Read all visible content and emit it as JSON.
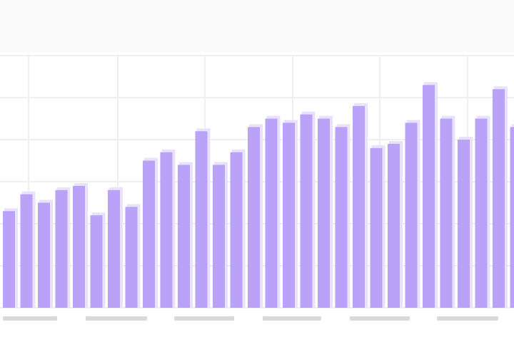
{
  "chart_data": {
    "type": "bar",
    "color": "#b9a2f7",
    "grid": true,
    "values": [
      2.3,
      2.7,
      2.5,
      2.8,
      2.9,
      2.2,
      2.8,
      2.4,
      3.5,
      3.7,
      3.4,
      4.2,
      3.4,
      3.7,
      4.3,
      4.5,
      4.4,
      4.6,
      4.5,
      4.3,
      4.8,
      3.8,
      3.9,
      4.4,
      5.3,
      4.5,
      4.0,
      4.5,
      5.2,
      4.3
    ],
    "ylim": [
      0,
      6
    ],
    "yticks": [
      0,
      1,
      2,
      3,
      4,
      5,
      6
    ]
  }
}
